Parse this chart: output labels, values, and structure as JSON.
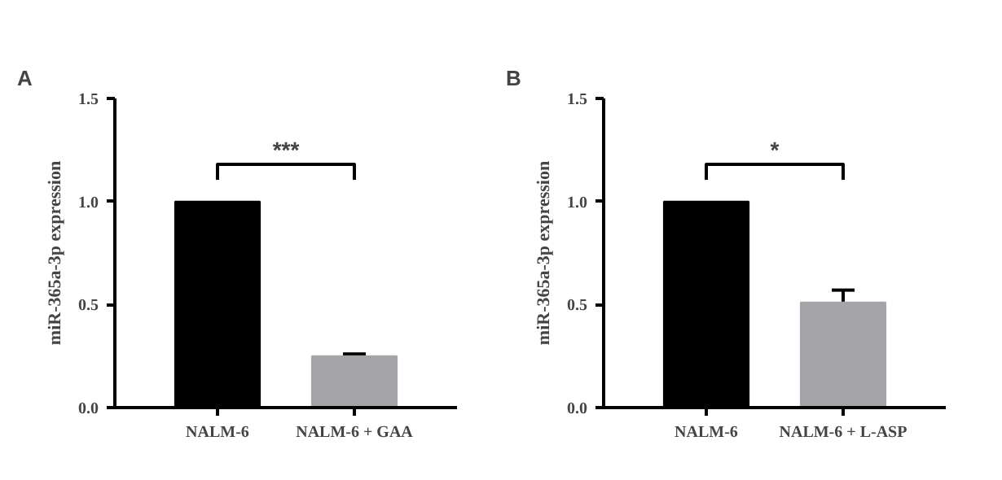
{
  "chart_data": [
    {
      "type": "bar",
      "title": "A",
      "ylabel": "miR-365a-3p expression",
      "categories": [
        "NALM-6",
        "NALM-6 + GAA"
      ],
      "values": [
        1.0,
        0.25
      ],
      "colors": [
        "#000000",
        "#a5a4a9"
      ],
      "errors": [
        null,
        [
          0.25,
          0.26
        ]
      ],
      "ylim": [
        0,
        1.5
      ],
      "yticks": [
        {
          "value": 0,
          "label": "0.0"
        },
        {
          "value": 0.5,
          "label": "0.5"
        },
        {
          "value": 1,
          "label": "1.0"
        },
        {
          "value": 1.5,
          "label": "1.5"
        }
      ],
      "grid": false,
      "annotations": [
        "***"
      ]
    },
    {
      "type": "bar",
      "title": "B",
      "ylabel": "miR-365a-3p expression",
      "categories": [
        "NALM-6",
        "NALM-6 + L-ASP"
      ],
      "values": [
        1.0,
        0.51
      ],
      "colors": [
        "#000000",
        "#a5a4a9"
      ],
      "errors": [
        null,
        [
          0.51,
          0.57
        ]
      ],
      "ylim": [
        0,
        1.5
      ],
      "yticks": [
        {
          "value": 0,
          "label": "0.0"
        },
        {
          "value": 0.5,
          "label": "0.5"
        },
        {
          "value": 1,
          "label": "1.0"
        },
        {
          "value": 1.5,
          "label": "1.5"
        }
      ],
      "grid": false,
      "annotations": [
        "*"
      ]
    }
  ]
}
